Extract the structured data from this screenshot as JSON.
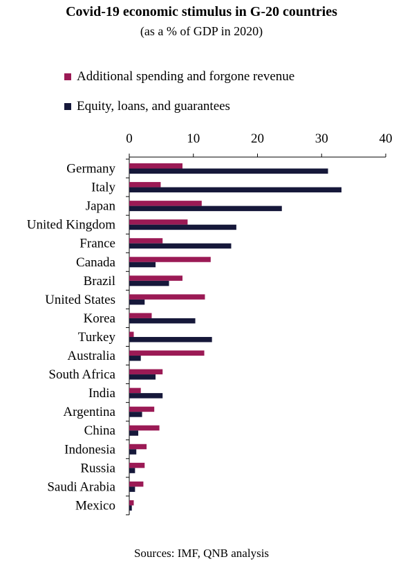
{
  "header": {
    "title": "Covid-19 economic stimulus in G-20 countries",
    "subtitle": "(as a % of GDP in 2020)"
  },
  "legend": [
    {
      "label": "Additional spending and forgone revenue",
      "color": "#9b1a55"
    },
    {
      "label": "Equity, loans, and guarantees",
      "color": "#16183a"
    }
  ],
  "source": "Sources: IMF, QNB analysis",
  "chart_data": {
    "type": "bar",
    "orientation": "horizontal",
    "title": "Covid-19 economic stimulus in G-20 countries",
    "subtitle": "(as a % of GDP in 2020)",
    "xlim": [
      0,
      40
    ],
    "xticks": [
      0,
      10,
      20,
      30,
      40
    ],
    "categories": [
      "Germany",
      "Italy",
      "Japan",
      "United Kingdom",
      "France",
      "Canada",
      "Brazil",
      "United States",
      "Korea",
      "Turkey",
      "Australia",
      "South Africa",
      "India",
      "Argentina",
      "China",
      "Indonesia",
      "Russia",
      "Saudi Arabia",
      "Mexico"
    ],
    "series": [
      {
        "name": "Additional spending and forgone revenue",
        "color": "#9b1a55",
        "values": [
          8.3,
          4.9,
          11.3,
          9.1,
          5.2,
          12.7,
          8.3,
          11.8,
          3.5,
          0.7,
          11.7,
          5.2,
          1.8,
          3.9,
          4.7,
          2.7,
          2.4,
          2.2,
          0.7
        ]
      },
      {
        "name": "Equity, loans, and guarantees",
        "color": "#16183a",
        "values": [
          31.0,
          33.1,
          23.8,
          16.7,
          15.9,
          4.1,
          6.2,
          2.4,
          10.3,
          12.9,
          1.8,
          4.1,
          5.2,
          2.0,
          1.4,
          1.1,
          0.9,
          0.9,
          0.4
        ]
      }
    ],
    "grid": false,
    "legend_position": "top-left"
  }
}
